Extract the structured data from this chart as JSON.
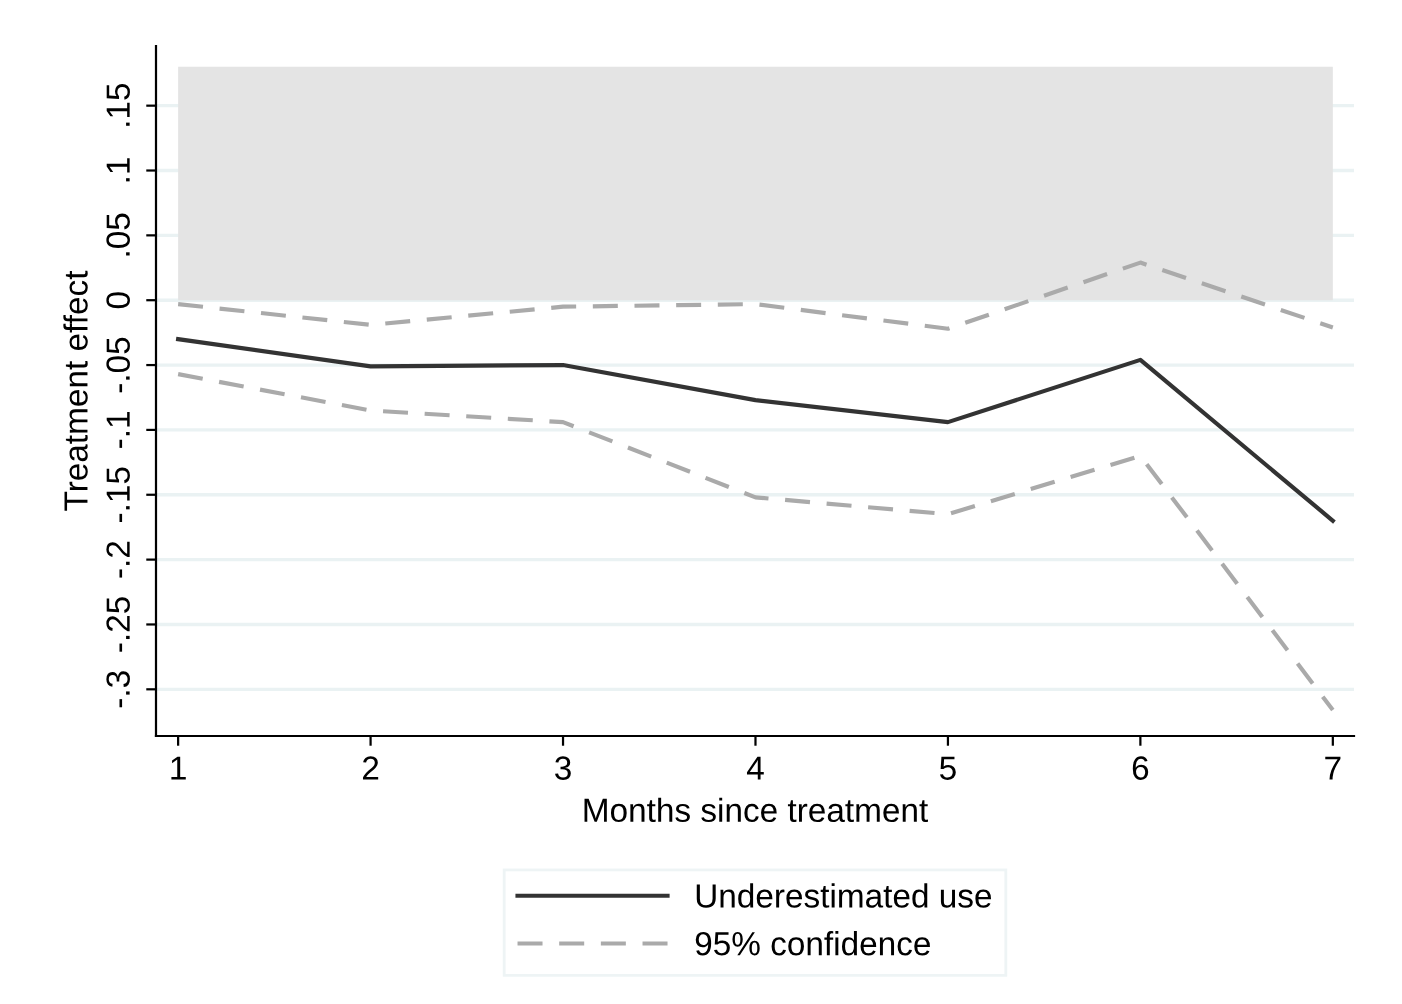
{
  "chart_data": {
    "type": "line",
    "xlabel": "Months since treatment",
    "ylabel": "Treatment effect",
    "x": [
      1,
      2,
      3,
      4,
      5,
      6,
      7
    ],
    "series": [
      {
        "name": "Underestimated use",
        "color": "#333333",
        "line_style": "solid",
        "values": [
          -0.03,
          -0.051,
          -0.05,
          -0.077,
          -0.094,
          -0.046,
          -0.17
        ]
      },
      {
        "name": "95% confidence",
        "color": "#aaaaaa",
        "line_style": "dashed",
        "values": [
          -0.003,
          -0.019,
          -0.005,
          -0.003,
          -0.022,
          0.029,
          -0.021
        ]
      },
      {
        "color": "#aaaaaa",
        "line_style": "dashed",
        "values": [
          -0.057,
          -0.085,
          -0.094,
          -0.152,
          -0.165,
          -0.12,
          -0.316
        ]
      }
    ],
    "bands": [
      {
        "axis": "y",
        "from": 0,
        "to": 0.18,
        "color": "#e4e4e4"
      }
    ],
    "xlim": [
      0.885,
      7.11
    ],
    "xticks": [
      1,
      2,
      3,
      4,
      5,
      6,
      7
    ],
    "ylim": [
      -0.336,
      0.196
    ],
    "yticks": [
      {
        "value": -0.3,
        "label": "-.3"
      },
      {
        "value": -0.25,
        "label": "-.25"
      },
      {
        "value": -0.2,
        "label": "-.2"
      },
      {
        "value": -0.15,
        "label": "-.15"
      },
      {
        "value": -0.1,
        "label": "-.1"
      },
      {
        "value": -0.05,
        "label": "-.05"
      },
      {
        "value": 0,
        "label": "0"
      },
      {
        "value": 0.05,
        "label": ".05"
      },
      {
        "value": 0.1,
        "label": ".1"
      },
      {
        "value": 0.15,
        "label": ".15"
      }
    ],
    "grid": "y",
    "legend": "bottom",
    "marker": "none"
  }
}
